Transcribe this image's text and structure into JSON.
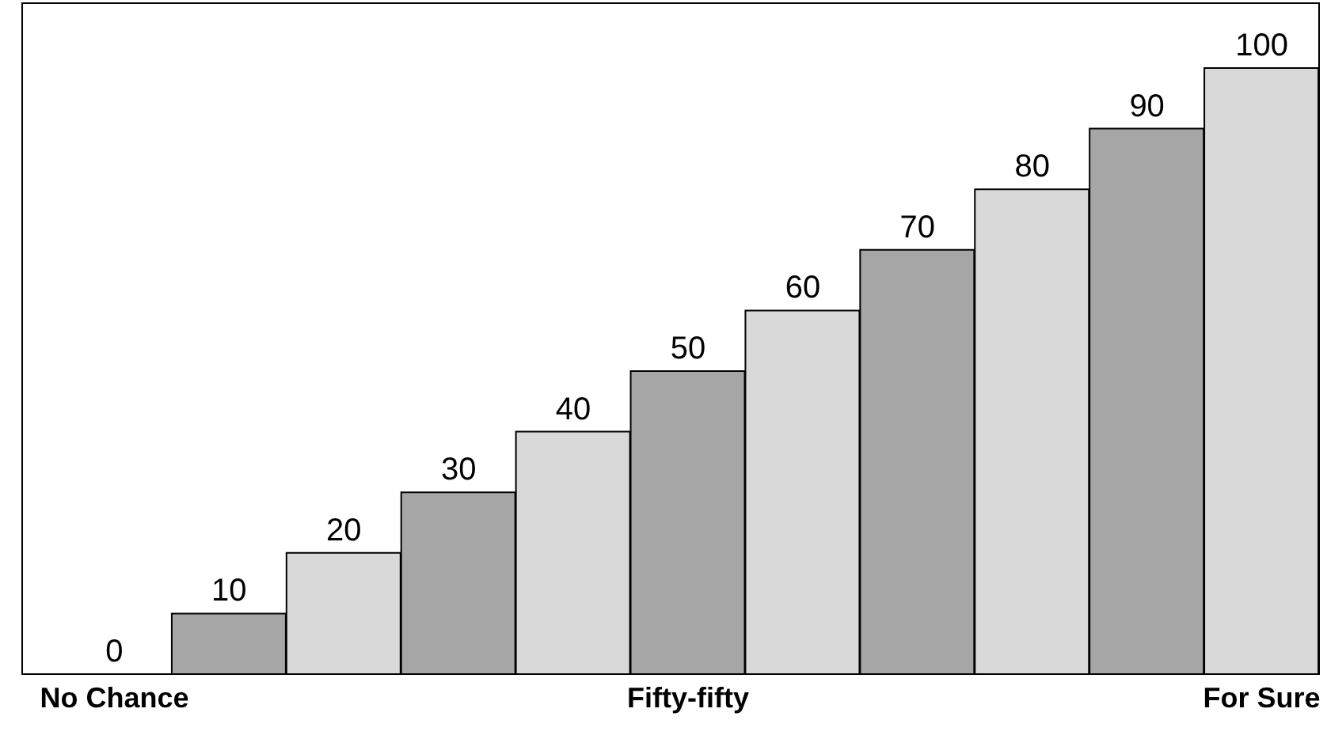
{
  "chart_data": {
    "type": "bar",
    "categories": [
      "No Chance",
      null,
      null,
      null,
      null,
      "Fifty-fifty",
      null,
      null,
      null,
      null,
      "For Sure"
    ],
    "values": [
      0,
      10,
      20,
      30,
      40,
      50,
      60,
      70,
      80,
      90,
      100
    ],
    "colors": [
      "#d9d9d9",
      "#a6a6a6",
      "#d9d9d9",
      "#a6a6a6",
      "#d9d9d9",
      "#a6a6a6",
      "#d9d9d9",
      "#a6a6a6",
      "#d9d9d9",
      "#a6a6a6",
      "#d9d9d9"
    ],
    "data_labels": true,
    "grid": false,
    "legend": false
  }
}
